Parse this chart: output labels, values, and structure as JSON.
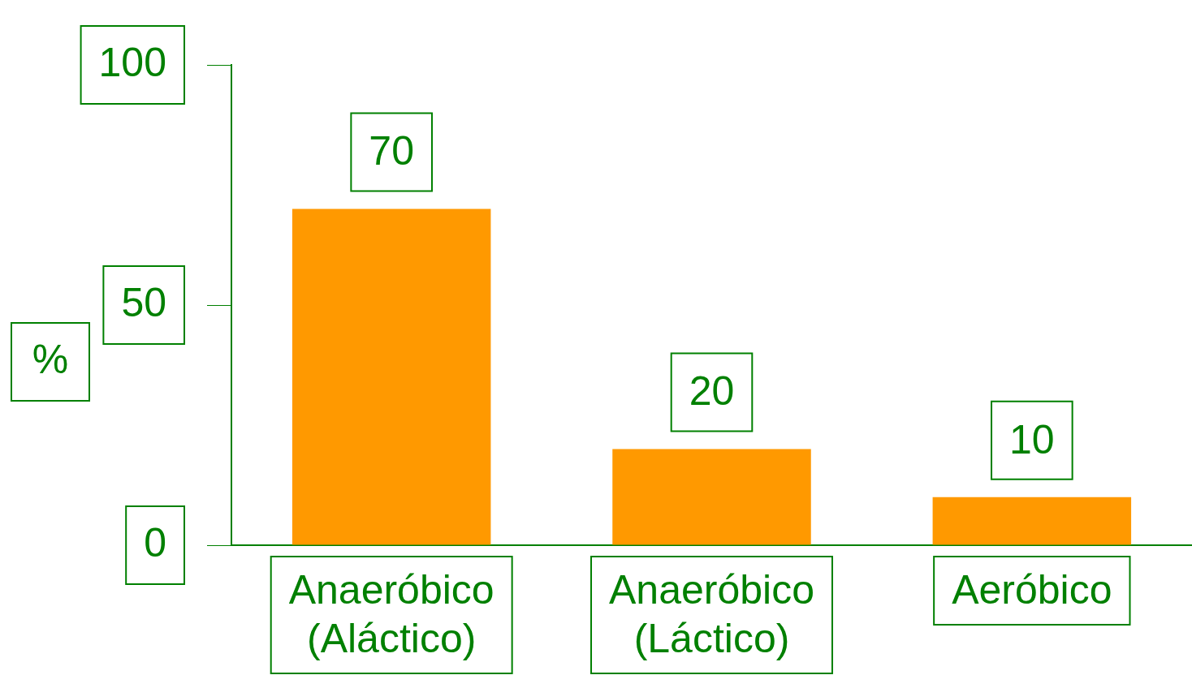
{
  "chart_data": {
    "type": "bar",
    "ylabel": "%",
    "categories": [
      "Anaeróbico (Aláctico)",
      "Anaeróbico (Láctico)",
      "Aeróbico"
    ],
    "values": [
      70,
      20,
      10
    ],
    "color": "#ff9900",
    "ylim": [
      0,
      100
    ],
    "yticks": [
      0,
      50,
      100
    ],
    "data_labels": true,
    "legend": false
  }
}
